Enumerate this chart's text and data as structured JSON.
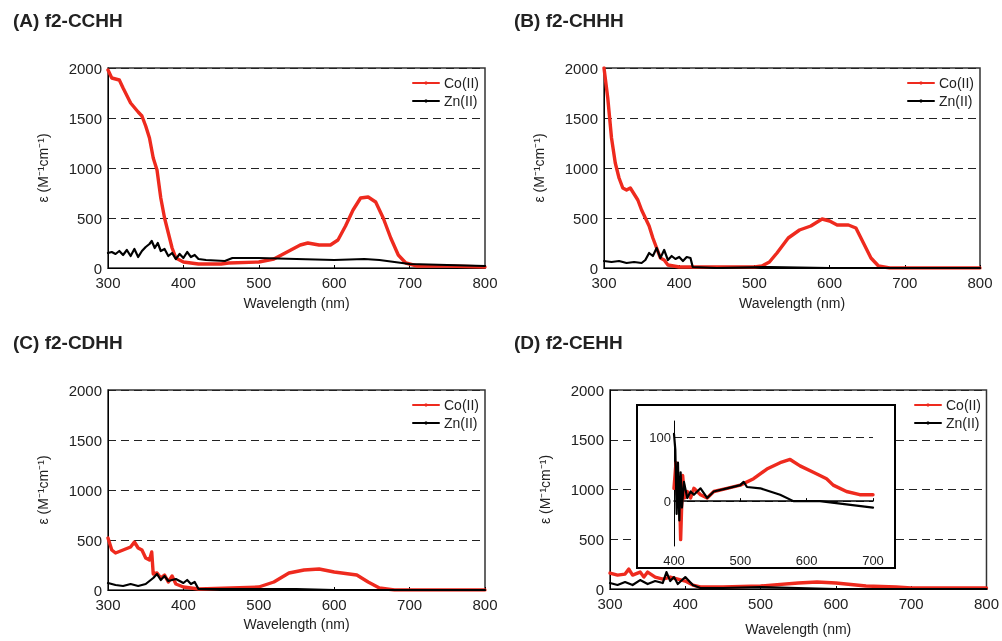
{
  "chart_data": [
    {
      "type": "line",
      "title": "(A) f2-CCHH",
      "xlabel": "Wavelength (nm)",
      "ylabel": "ε (M⁻¹cm⁻¹)",
      "xlim": [
        300,
        800
      ],
      "xticks": [
        300,
        400,
        500,
        600,
        700,
        800
      ],
      "ylim": [
        0,
        2000
      ],
      "yticks": [
        0,
        500,
        1000,
        1500,
        2000
      ],
      "grid": "y",
      "legend": "top right",
      "marker": "none",
      "line_style": "solid",
      "series": [
        {
          "name": "Co(II)",
          "color": "#ee2a1e",
          "x": [
            300,
            305,
            315,
            320,
            330,
            340,
            345,
            350,
            355,
            360,
            365,
            370,
            375,
            380,
            385,
            390,
            400,
            420,
            450,
            460,
            500,
            520,
            540,
            555,
            565,
            580,
            595,
            605,
            615,
            625,
            635,
            645,
            655,
            665,
            675,
            685,
            695,
            710,
            750,
            800
          ],
          "values": [
            1980,
            1900,
            1880,
            1800,
            1650,
            1560,
            1520,
            1420,
            1300,
            1100,
            980,
            700,
            500,
            350,
            200,
            100,
            60,
            40,
            40,
            50,
            60,
            90,
            170,
            230,
            250,
            230,
            230,
            280,
            420,
            580,
            700,
            710,
            660,
            500,
            300,
            130,
            50,
            20,
            20,
            10
          ]
        },
        {
          "name": "Zn(II)",
          "color": "#000000",
          "x": [
            300,
            305,
            310,
            315,
            320,
            325,
            330,
            335,
            340,
            345,
            350,
            355,
            358,
            362,
            366,
            370,
            375,
            380,
            385,
            390,
            395,
            400,
            405,
            410,
            415,
            420,
            430,
            455,
            465,
            500,
            550,
            600,
            640,
            660,
            700,
            750,
            800
          ],
          "values": [
            150,
            160,
            140,
            170,
            130,
            180,
            120,
            190,
            110,
            170,
            210,
            240,
            270,
            200,
            250,
            170,
            190,
            120,
            150,
            90,
            140,
            100,
            160,
            110,
            130,
            90,
            80,
            70,
            100,
            100,
            90,
            80,
            90,
            80,
            40,
            30,
            20
          ]
        }
      ]
    },
    {
      "type": "line",
      "title": "(B) f2-CHHH",
      "xlabel": "Wavelength (nm)",
      "ylabel": "ε (M⁻¹cm⁻¹)",
      "xlim": [
        300,
        800
      ],
      "xticks": [
        300,
        400,
        500,
        600,
        700,
        800
      ],
      "ylim": [
        0,
        2000
      ],
      "yticks": [
        0,
        500,
        1000,
        1500,
        2000
      ],
      "grid": "y",
      "legend": "top right",
      "marker": "none",
      "line_style": "solid",
      "series": [
        {
          "name": "Co(II)",
          "color": "#ee2a1e",
          "x": [
            300,
            305,
            310,
            315,
            320,
            325,
            330,
            335,
            340,
            345,
            350,
            355,
            360,
            365,
            370,
            375,
            380,
            385,
            400,
            500,
            510,
            520,
            530,
            545,
            560,
            575,
            590,
            600,
            610,
            625,
            635,
            645,
            655,
            665,
            680,
            800
          ],
          "values": [
            2000,
            1700,
            1300,
            1050,
            900,
            800,
            780,
            800,
            740,
            680,
            580,
            500,
            420,
            300,
            200,
            100,
            80,
            30,
            10,
            10,
            20,
            60,
            150,
            300,
            380,
            420,
            490,
            470,
            430,
            430,
            400,
            250,
            100,
            20,
            0,
            0
          ]
        },
        {
          "name": "Zn(II)",
          "color": "#000000",
          "x": [
            300,
            310,
            320,
            330,
            340,
            350,
            355,
            360,
            365,
            370,
            375,
            380,
            385,
            390,
            395,
            400,
            405,
            410,
            415,
            418,
            450,
            520,
            600,
            800
          ],
          "values": [
            70,
            60,
            70,
            50,
            60,
            50,
            80,
            150,
            120,
            200,
            100,
            180,
            80,
            120,
            90,
            110,
            70,
            110,
            100,
            10,
            0,
            10,
            0,
            0
          ]
        }
      ]
    },
    {
      "type": "line",
      "title": "(C) f2-CDHH",
      "xlabel": "Wavelength (nm)",
      "ylabel": "ε (M⁻¹cm⁻¹)",
      "xlim": [
        300,
        800
      ],
      "xticks": [
        300,
        400,
        500,
        600,
        700,
        800
      ],
      "ylim": [
        0,
        2000
      ],
      "yticks": [
        0,
        500,
        1000,
        1500,
        2000
      ],
      "grid": "y",
      "legend": "top right",
      "marker": "none",
      "line_style": "solid",
      "series": [
        {
          "name": "Co(II)",
          "color": "#ee2a1e",
          "x": [
            300,
            305,
            310,
            320,
            330,
            335,
            340,
            345,
            350,
            355,
            358,
            360,
            365,
            370,
            375,
            380,
            385,
            390,
            400,
            420,
            500,
            520,
            540,
            560,
            580,
            600,
            620,
            630,
            645,
            660,
            680,
            800
          ],
          "values": [
            520,
            400,
            370,
            400,
            430,
            480,
            420,
            400,
            320,
            300,
            380,
            160,
            170,
            120,
            150,
            80,
            140,
            60,
            30,
            10,
            30,
            80,
            170,
            200,
            210,
            180,
            160,
            150,
            80,
            20,
            0,
            0
          ]
        },
        {
          "name": "Zn(II)",
          "color": "#000000",
          "x": [
            300,
            310,
            320,
            330,
            340,
            350,
            360,
            365,
            370,
            375,
            380,
            390,
            400,
            405,
            410,
            415,
            420,
            450,
            550,
            600,
            800
          ],
          "values": [
            70,
            50,
            40,
            60,
            40,
            60,
            120,
            160,
            100,
            140,
            90,
            110,
            70,
            100,
            60,
            80,
            10,
            10,
            10,
            0,
            0
          ]
        }
      ]
    },
    {
      "type": "line",
      "title": "(D) f2-CEHH",
      "xlabel": "Wavelength (nm)",
      "ylabel": "ε (M⁻¹cm⁻¹)",
      "xlim": [
        300,
        800
      ],
      "xticks": [
        300,
        400,
        500,
        600,
        700,
        800
      ],
      "ylim": [
        0,
        2000
      ],
      "yticks": [
        0,
        500,
        1000,
        1500,
        2000
      ],
      "grid": "y",
      "legend": "top right",
      "marker": "none",
      "line_style": "solid",
      "series": [
        {
          "name": "Co(II)",
          "color": "#ee2a1e",
          "x": [
            300,
            310,
            320,
            325,
            330,
            340,
            345,
            350,
            360,
            370,
            380,
            390,
            400,
            410,
            420,
            450,
            500,
            550,
            575,
            600,
            640,
            680,
            700,
            800
          ],
          "values": [
            160,
            140,
            150,
            200,
            140,
            170,
            120,
            170,
            120,
            100,
            120,
            100,
            80,
            40,
            20,
            20,
            30,
            60,
            70,
            60,
            30,
            20,
            10,
            10
          ]
        },
        {
          "name": "Zn(II)",
          "color": "#000000",
          "x": [
            300,
            310,
            320,
            330,
            340,
            350,
            360,
            370,
            375,
            380,
            385,
            390,
            400,
            405,
            410,
            420,
            450,
            500,
            550,
            600,
            800
          ],
          "values": [
            60,
            40,
            70,
            40,
            90,
            50,
            80,
            60,
            170,
            80,
            120,
            50,
            120,
            80,
            40,
            10,
            10,
            20,
            10,
            0,
            0
          ]
        }
      ]
    },
    {
      "type": "line",
      "xlim": [
        400,
        700
      ],
      "xticks": [
        400,
        500,
        600,
        700
      ],
      "ylim": [
        -70,
        125
      ],
      "yticks": [
        0,
        100
      ],
      "grid": "y",
      "marker": "none",
      "line_style": "solid",
      "series": [
        {
          "color": "#ee2a1e",
          "x": [
            400,
            403,
            405,
            408,
            410,
            413,
            416,
            420,
            425,
            430,
            440,
            450,
            460,
            480,
            500,
            520,
            540,
            560,
            575,
            590,
            610,
            630,
            640,
            660,
            680,
            700
          ],
          "values": [
            20,
            60,
            10,
            30,
            -60,
            40,
            5,
            15,
            5,
            20,
            10,
            5,
            15,
            20,
            25,
            35,
            50,
            60,
            65,
            55,
            45,
            35,
            25,
            15,
            10,
            10
          ]
        },
        {
          "color": "#000000",
          "x": [
            400,
            402,
            404,
            406,
            408,
            410,
            412,
            415,
            420,
            425,
            430,
            440,
            450,
            460,
            480,
            500,
            505,
            510,
            530,
            560,
            580,
            620,
            660,
            700
          ],
          "values": [
            105,
            80,
            -20,
            60,
            -30,
            45,
            -10,
            30,
            5,
            15,
            10,
            20,
            5,
            15,
            20,
            25,
            30,
            22,
            20,
            10,
            0,
            0,
            -5,
            -10
          ]
        }
      ]
    }
  ]
}
